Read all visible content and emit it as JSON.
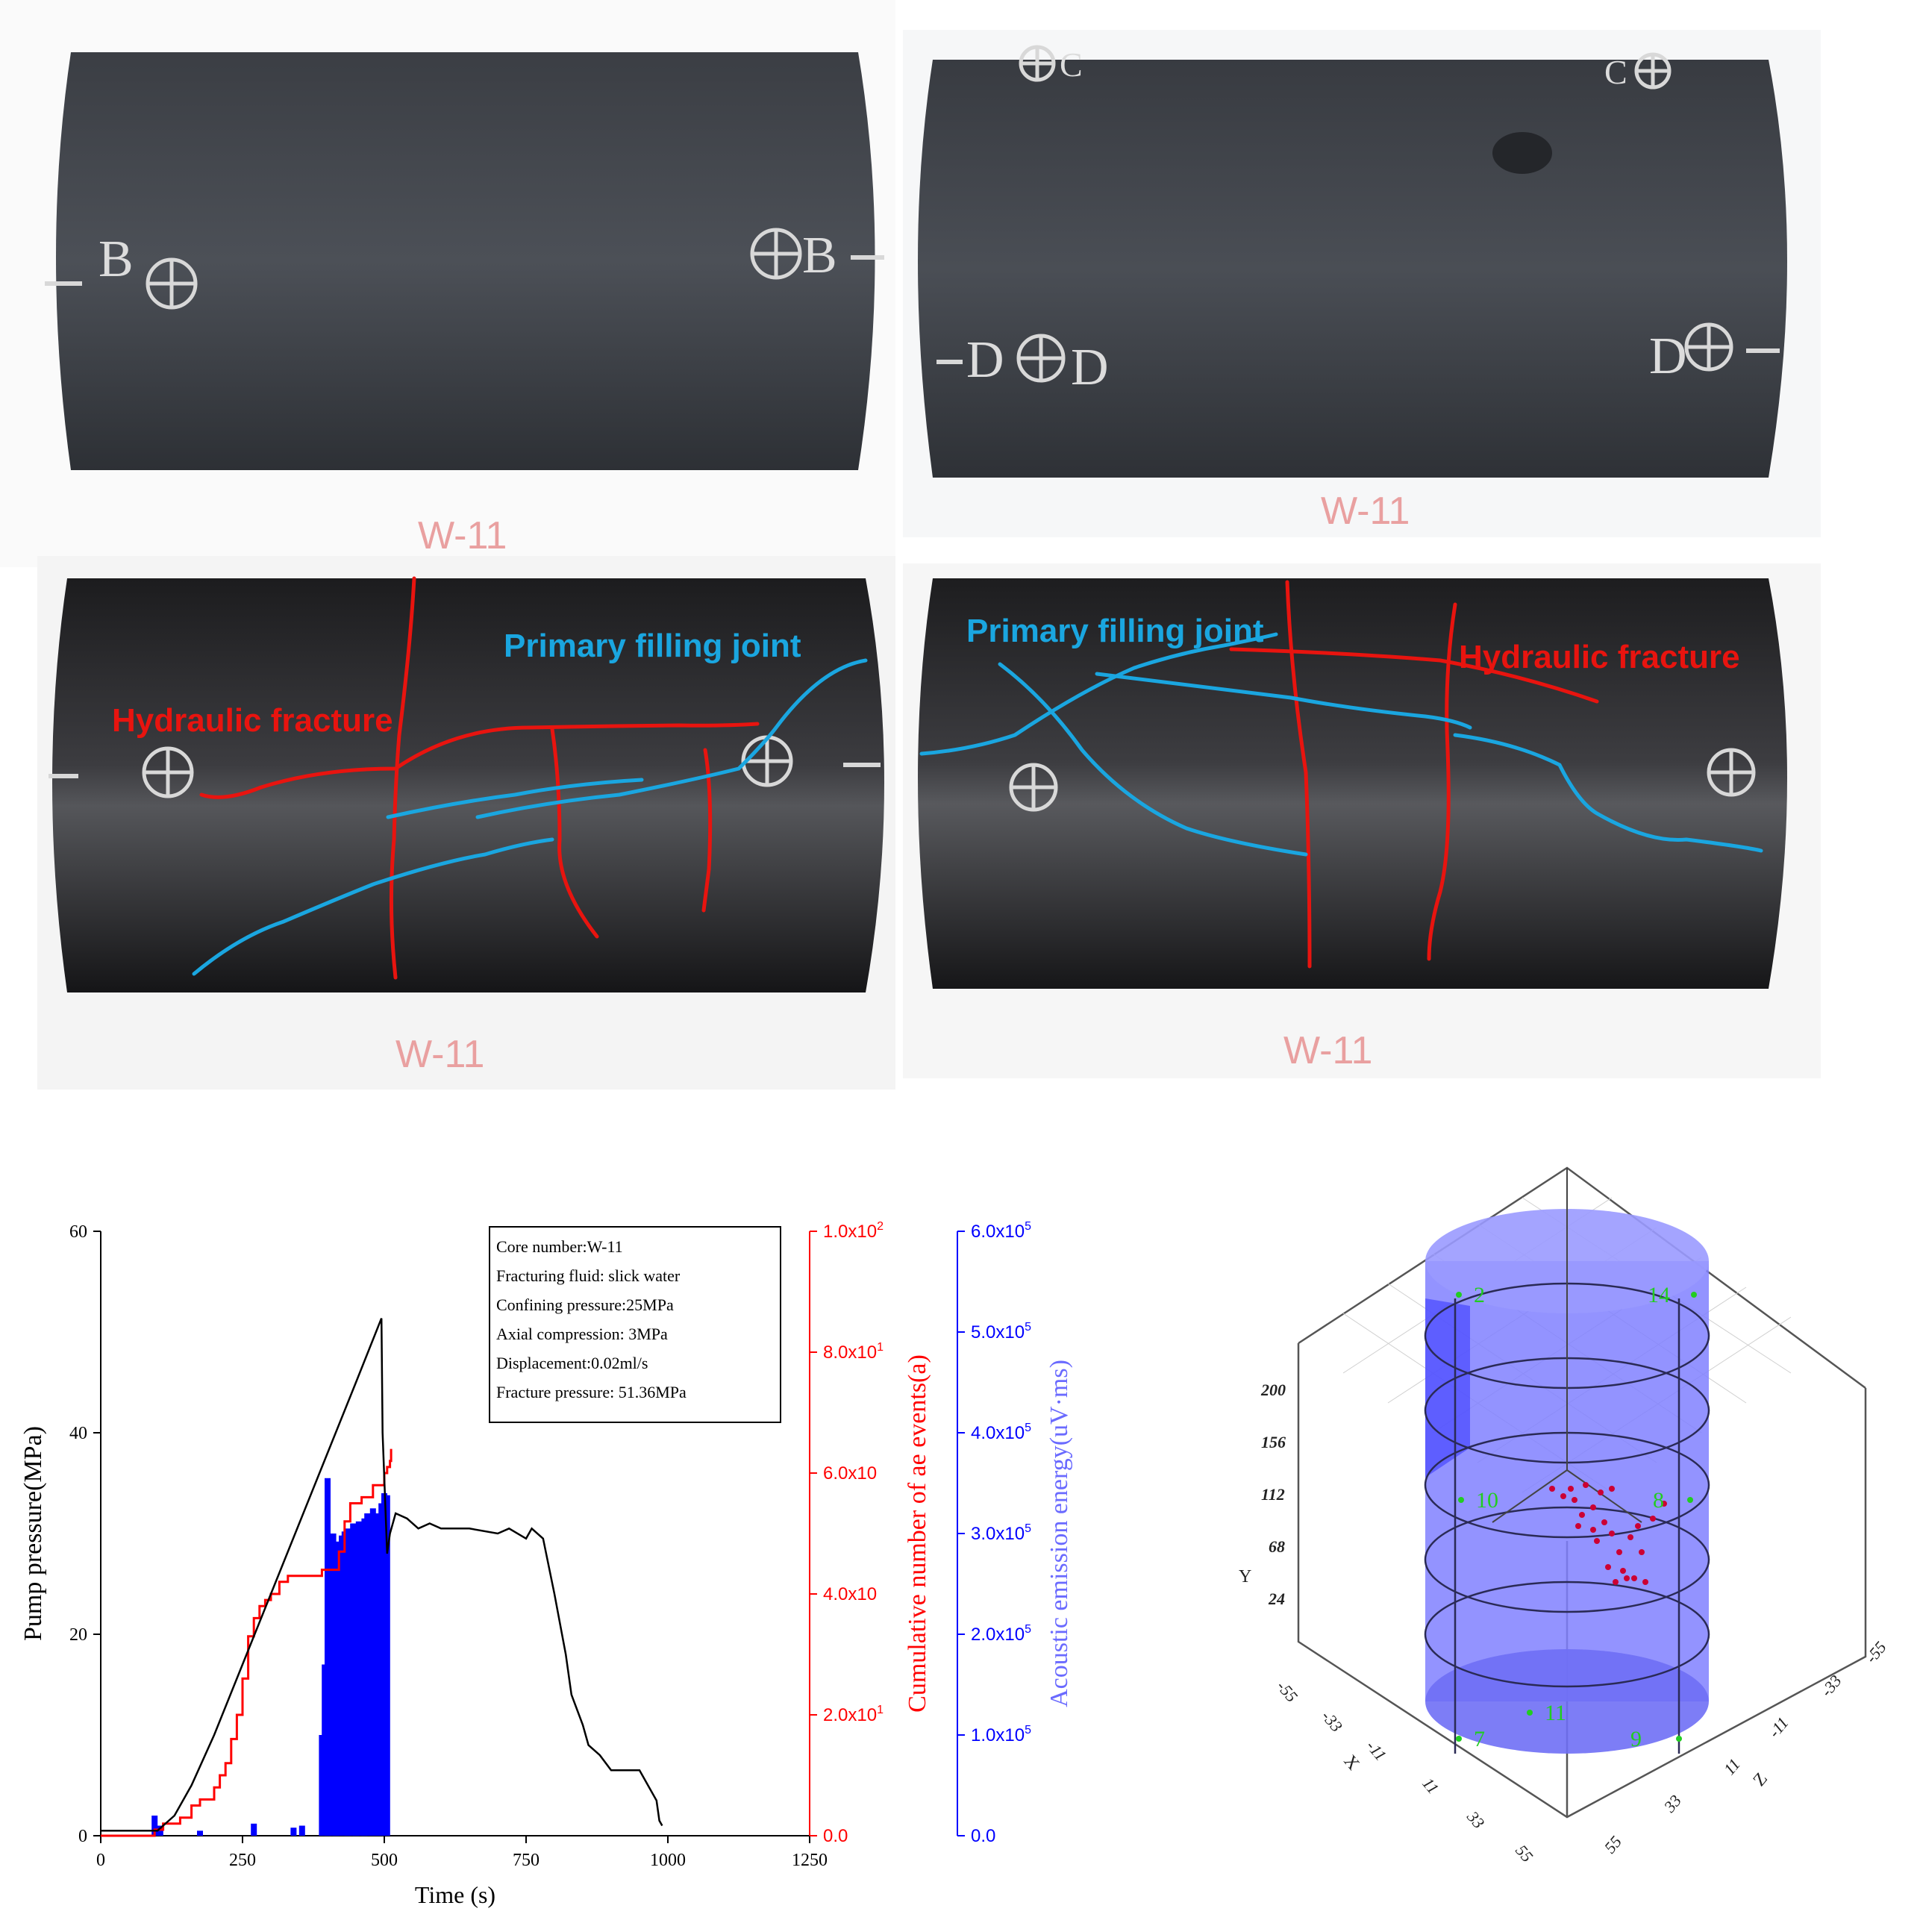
{
  "photos": {
    "top_left": {
      "sample_label": "W-11",
      "end_mark_left": "B",
      "end_mark_right": "B"
    },
    "top_right": {
      "sample_label": "W-11",
      "top_mark_left": "C",
      "top_mark_right": "C",
      "side_mark_left": "D",
      "side_mark_mid": "D",
      "side_mark_right": "D"
    },
    "bottom_left": {
      "sample_label": "W-11",
      "label_hydraulic": "Hydraulic fracture",
      "label_joint": "Primary filling joint"
    },
    "bottom_right": {
      "sample_label": "W-11",
      "label_hydraulic": "Hydraulic fracture",
      "label_joint": "Primary filling joint"
    }
  },
  "colors": {
    "hydraulic_fracture": "#e8140f",
    "filling_joint": "#1aa6e0",
    "pressure_line": "#000000",
    "ae_count_line": "#ff0000",
    "ae_energy_bars": "#0000ff"
  },
  "info_box": [
    "Core number:W-11",
    "Fracturing fluid:  slick water",
    "Confining pressure:25MPa",
    "Axial compression:  3MPa",
    "Displacement:0.02ml/s",
    "Fracture pressure:  51.36MPa"
  ],
  "chart_data": {
    "type": "line",
    "xlabel": "Time (s)",
    "xlim": [
      0,
      1250
    ],
    "xticks": [
      "0",
      "250",
      "500",
      "750",
      "1000",
      "1250"
    ],
    "y_left": {
      "label": "Pump pressure(MPa)",
      "lim": [
        0,
        60
      ],
      "ticks": [
        "0",
        "20",
        "40",
        "60"
      ]
    },
    "y_right1": {
      "label": "Cumulative  number  of ae events(a)",
      "lim": [
        0,
        100
      ],
      "ticks": [
        "0.0",
        "2.0x10",
        "4.0x10",
        "6.0x10",
        "8.0x10",
        "1.0x10"
      ],
      "ticks_exp": [
        "",
        "1",
        "",
        "",
        "1",
        "2"
      ]
    },
    "y_right2": {
      "label": "Acoustic  emission  energy(uV·ms)",
      "lim": [
        0,
        600000
      ],
      "ticks": [
        "0.0",
        "1.0x10",
        "2.0x10",
        "3.0x10",
        "4.0x10",
        "5.0x10",
        "6.0x10"
      ],
      "ticks_exp": [
        "",
        "5",
        "5",
        "5",
        "5",
        "5",
        "5"
      ]
    },
    "series": [
      {
        "name": "Pump pressure",
        "axis": "left",
        "x": [
          0,
          90,
          100,
          130,
          160,
          200,
          250,
          300,
          350,
          400,
          450,
          495,
          497,
          505,
          510,
          520,
          540,
          560,
          580,
          600,
          650,
          700,
          720,
          750,
          760,
          780,
          800,
          820,
          830,
          850,
          860,
          880,
          900,
          950,
          980,
          985,
          990
        ],
        "y": [
          0.5,
          0.5,
          0.5,
          2,
          5,
          10,
          17,
          24,
          31,
          38,
          45,
          51.36,
          40,
          28,
          30,
          32,
          31.5,
          30.5,
          31,
          30.5,
          30.5,
          30,
          30.5,
          29.5,
          30.5,
          29.5,
          24,
          18,
          14,
          11,
          9,
          8,
          6.5,
          6.5,
          3.5,
          1.5,
          1
        ]
      },
      {
        "name": "Cumulative AE events",
        "axis": "right1",
        "x": [
          0,
          85,
          95,
          110,
          140,
          160,
          175,
          190,
          200,
          210,
          220,
          230,
          240,
          250,
          260,
          270,
          280,
          290,
          300,
          315,
          330,
          350,
          380,
          390,
          420,
          430,
          440,
          460,
          480,
          500,
          505,
          510,
          512
        ],
        "y": [
          0,
          0,
          1,
          2,
          3,
          5,
          6,
          6,
          8,
          10,
          12,
          16,
          20,
          26,
          33,
          36,
          38,
          39,
          40,
          42,
          43,
          43,
          43,
          44,
          47,
          52,
          55,
          56,
          58,
          60,
          61,
          62,
          64
        ]
      },
      {
        "name": "AE energy",
        "axis": "right2",
        "type": "bar",
        "x": [
          95,
          100,
          105,
          175,
          270,
          340,
          355,
          390,
          395,
          400,
          405,
          410,
          415,
          420,
          425,
          430,
          435,
          440,
          445,
          450,
          455,
          460,
          465,
          470,
          475,
          480,
          485,
          490,
          495,
          500,
          505
        ],
        "y": [
          20000,
          5000,
          10000,
          5000,
          12000,
          8000,
          10000,
          100000,
          170000,
          355000,
          290000,
          300000,
          285000,
          292000,
          298000,
          302000,
          305000,
          300000,
          310000,
          305000,
          312000,
          310000,
          315000,
          320000,
          318000,
          325000,
          320000,
          318000,
          330000,
          340000,
          338000
        ]
      }
    ]
  },
  "plot3d": {
    "axis_y_label": "Y",
    "axis_x_label": "X",
    "axis_z_label": "Z",
    "y_ticks": [
      "200",
      "156",
      "112",
      "68",
      "24"
    ],
    "x_ticks": [
      "-55",
      "-33",
      "-11",
      "11",
      "33",
      "55"
    ],
    "z_ticks": [
      "-55",
      "-33",
      "-11",
      "11",
      "33",
      "55"
    ],
    "sensors": [
      "2",
      "14",
      "10",
      "8",
      "11",
      "7",
      "9"
    ]
  }
}
